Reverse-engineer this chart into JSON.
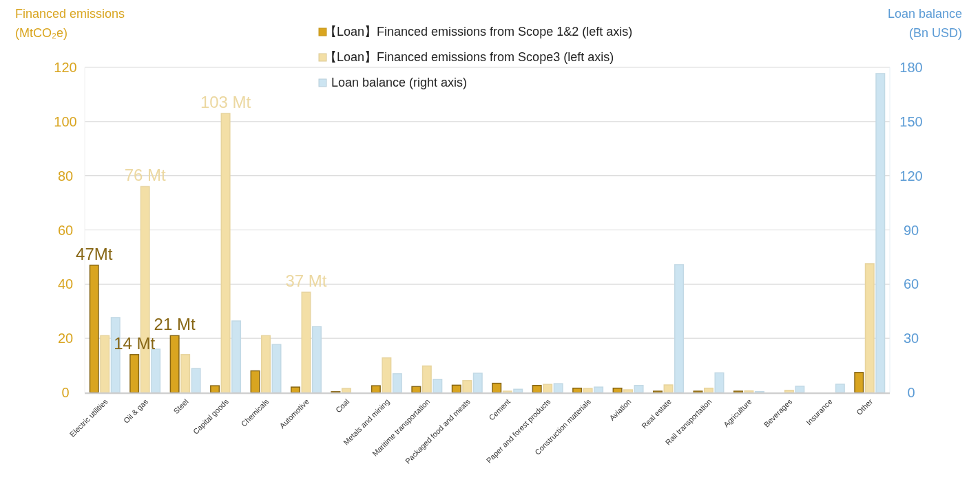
{
  "chart_data": {
    "type": "bar",
    "categories": [
      "Electric utilities",
      "Oil & gas",
      "Steel",
      "Capital goods",
      "Chemicals",
      "Automotive",
      "Coal",
      "Metals and mining",
      "Maritime transportation",
      "Packaged food and meats",
      "Cement",
      "Paper and forest products",
      "Construction materials",
      "Aviation",
      "Real estate",
      "Rail transportation",
      "Agriculture",
      "Beverages",
      "Insurance",
      "Other"
    ],
    "series": [
      {
        "name": "【Loan】Financed emissions from Scope 1&2 (left axis)",
        "color": "#d9a520",
        "values": [
          47,
          14,
          21,
          2.5,
          8,
          2,
          0.3,
          2.5,
          2.2,
          2.7,
          3.4,
          2.6,
          1.6,
          1.6,
          0.5,
          0.5,
          0.5,
          0,
          0,
          7.4
        ],
        "value_labels": [
          "47Mt",
          "14 Mt",
          "21 Mt",
          null,
          null,
          null,
          null,
          null,
          null,
          null,
          null,
          null,
          null,
          null,
          null,
          null,
          null,
          null,
          null,
          null
        ]
      },
      {
        "name": "【Loan】Financed emissions from Scope3 (left axis)",
        "color": "#f3dfa6",
        "values": [
          21,
          76,
          14,
          103,
          21,
          37,
          1.5,
          12.8,
          9.8,
          4.4,
          0.5,
          3,
          1.5,
          1,
          2.8,
          1.6,
          0.6,
          0.8,
          0,
          47.5
        ],
        "value_labels": [
          null,
          "76 Mt",
          null,
          "103 Mt",
          null,
          "37 Mt",
          null,
          null,
          null,
          null,
          null,
          null,
          null,
          null,
          null,
          null,
          null,
          null,
          null,
          null
        ]
      },
      {
        "name": "Loan balance (right axis)",
        "color": "#cce4f1",
        "axis": "y2",
        "values": [
          41.5,
          24,
          13.3,
          39.6,
          26.6,
          36.5,
          0,
          10.4,
          7.3,
          10.7,
          1.8,
          4.9,
          3,
          3.9,
          70.8,
          10.9,
          0.5,
          3.5,
          4.6,
          176.6
        ]
      }
    ],
    "ylabel": "Financed emissions\n(MtCO₂e)",
    "y2label": "Loan balance\n(Bn USD)",
    "ylim": [
      0,
      120
    ],
    "yticks": [
      0,
      20,
      40,
      60,
      80,
      100,
      120
    ],
    "y2lim": [
      0,
      180
    ],
    "y2ticks": [
      0,
      30,
      60,
      90,
      120,
      150,
      180
    ],
    "grid": "y",
    "legend": "top"
  }
}
